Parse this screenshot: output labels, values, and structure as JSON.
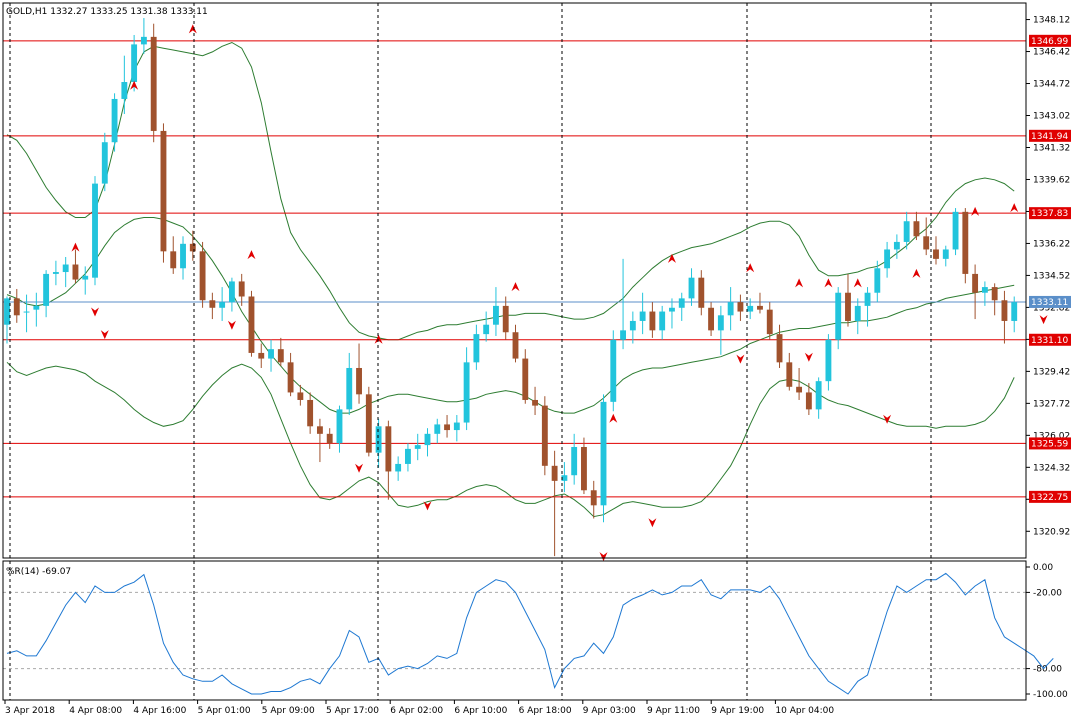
{
  "header": {
    "symbol": "GOLD,H1",
    "open": "1332.27",
    "high": "1333.25",
    "low": "1331.38",
    "close": "1333.11"
  },
  "oscillator": {
    "label": "%R(14) -69.07"
  },
  "colors": {
    "bull": "#22c4dc",
    "bear": "#a0522d",
    "band": "#2e7d32",
    "hline": "#e00000",
    "price_line": "#5b8fc9",
    "wr_line": "#1e78d2",
    "arrow": "#e00000"
  },
  "chart_data": [
    {
      "type": "candlestick",
      "ylim": [
        1319.5,
        1349.0
      ],
      "y_ticks": [
        "1348.12",
        "1346.42",
        "1344.72",
        "1343.02",
        "1341.32",
        "1339.62",
        "1337.92",
        "1336.22",
        "1334.52",
        "1332.82",
        "1331.12",
        "1329.42",
        "1327.72",
        "1326.02",
        "1324.32",
        "1322.62",
        "1320.92"
      ],
      "x_labels": [
        "3 Apr 2018",
        "4 Apr 08:00",
        "4 Apr 16:00",
        "5 Apr 01:00",
        "5 Apr 09:00",
        "5 Apr 17:00",
        "6 Apr 02:00",
        "6 Apr 10:00",
        "6 Apr 18:00",
        "9 Apr 03:00",
        "9 Apr 11:00",
        "9 Apr 19:00",
        "10 Apr 04:00"
      ],
      "horizontal_levels": [
        "1346.99",
        "1341.94",
        "1337.83",
        "1331.10",
        "1325.59",
        "1322.75"
      ],
      "current_price": "1333.11",
      "candles_ohlc": [
        [
          1331.9,
          1333.4,
          1330.9,
          1333.3
        ],
        [
          1333.3,
          1333.8,
          1332.0,
          1332.4
        ],
        [
          1332.6,
          1333.5,
          1331.5,
          1332.6
        ],
        [
          1332.7,
          1333.6,
          1331.8,
          1332.9
        ],
        [
          1332.9,
          1334.8,
          1332.3,
          1334.6
        ],
        [
          1334.6,
          1335.3,
          1334.0,
          1334.7
        ],
        [
          1334.7,
          1335.5,
          1333.9,
          1335.1
        ],
        [
          1335.1,
          1335.9,
          1334.1,
          1334.3
        ],
        [
          1334.3,
          1335.0,
          1333.5,
          1334.5
        ],
        [
          1334.4,
          1339.8,
          1334.0,
          1339.4
        ],
        [
          1339.4,
          1342.1,
          1339.0,
          1341.6
        ],
        [
          1341.6,
          1344.2,
          1341.1,
          1343.9
        ],
        [
          1343.9,
          1346.2,
          1343.1,
          1344.8
        ],
        [
          1344.8,
          1347.3,
          1344.3,
          1346.8
        ],
        [
          1346.8,
          1348.2,
          1346.3,
          1347.2
        ],
        [
          1347.2,
          1347.9,
          1341.6,
          1342.2
        ],
        [
          1342.2,
          1342.6,
          1335.2,
          1335.8
        ],
        [
          1335.8,
          1336.6,
          1334.6,
          1334.9
        ],
        [
          1334.9,
          1336.6,
          1334.3,
          1336.2
        ],
        [
          1336.2,
          1336.9,
          1335.3,
          1335.8
        ],
        [
          1335.8,
          1336.3,
          1332.8,
          1333.2
        ],
        [
          1333.2,
          1333.6,
          1332.2,
          1332.8
        ],
        [
          1332.8,
          1333.9,
          1332.1,
          1333.1
        ],
        [
          1333.1,
          1334.4,
          1332.6,
          1334.2
        ],
        [
          1334.2,
          1334.6,
          1332.9,
          1333.4
        ],
        [
          1333.4,
          1333.7,
          1330.2,
          1330.4
        ],
        [
          1330.4,
          1330.9,
          1329.6,
          1330.1
        ],
        [
          1330.1,
          1331.1,
          1329.4,
          1330.6
        ],
        [
          1330.6,
          1331.2,
          1329.7,
          1329.9
        ],
        [
          1329.9,
          1330.4,
          1328.1,
          1328.3
        ],
        [
          1328.3,
          1328.7,
          1327.6,
          1327.9
        ],
        [
          1327.9,
          1328.3,
          1326.1,
          1326.5
        ],
        [
          1326.5,
          1326.9,
          1324.6,
          1326.1
        ],
        [
          1326.1,
          1326.4,
          1325.3,
          1325.6
        ],
        [
          1325.6,
          1327.6,
          1325.1,
          1327.4
        ],
        [
          1327.4,
          1330.4,
          1327.1,
          1329.6
        ],
        [
          1329.6,
          1330.9,
          1327.7,
          1328.2
        ],
        [
          1328.2,
          1328.6,
          1324.9,
          1325.1
        ],
        [
          1325.1,
          1326.9,
          1324.3,
          1326.5
        ],
        [
          1326.5,
          1326.8,
          1322.6,
          1324.1
        ],
        [
          1324.1,
          1324.9,
          1323.6,
          1324.5
        ],
        [
          1324.5,
          1325.6,
          1324.1,
          1325.3
        ],
        [
          1325.3,
          1326.1,
          1324.7,
          1325.5
        ],
        [
          1325.5,
          1326.4,
          1324.9,
          1326.1
        ],
        [
          1326.1,
          1326.9,
          1325.6,
          1326.6
        ],
        [
          1326.6,
          1327.1,
          1325.9,
          1326.3
        ],
        [
          1326.3,
          1327.1,
          1325.7,
          1326.7
        ],
        [
          1326.7,
          1330.7,
          1326.3,
          1329.9
        ],
        [
          1329.9,
          1331.9,
          1329.5,
          1331.4
        ],
        [
          1331.4,
          1332.6,
          1331.0,
          1331.9
        ],
        [
          1331.9,
          1333.9,
          1331.3,
          1332.9
        ],
        [
          1332.9,
          1333.4,
          1331.1,
          1331.5
        ],
        [
          1331.5,
          1331.9,
          1329.9,
          1330.1
        ],
        [
          1330.1,
          1330.6,
          1327.7,
          1327.9
        ],
        [
          1327.9,
          1328.6,
          1327.1,
          1327.6
        ],
        [
          1327.6,
          1328.1,
          1323.9,
          1324.4
        ],
        [
          1324.4,
          1325.2,
          1319.6,
          1323.6
        ],
        [
          1323.6,
          1324.6,
          1323.0,
          1323.9
        ],
        [
          1323.9,
          1326.1,
          1323.4,
          1325.4
        ],
        [
          1325.4,
          1325.9,
          1322.9,
          1323.1
        ],
        [
          1323.1,
          1323.6,
          1321.6,
          1322.3
        ],
        [
          1322.3,
          1328.2,
          1321.4,
          1327.8
        ],
        [
          1327.8,
          1331.6,
          1327.3,
          1331.1
        ],
        [
          1331.1,
          1335.4,
          1330.6,
          1331.6
        ],
        [
          1331.6,
          1332.6,
          1330.9,
          1332.1
        ],
        [
          1332.1,
          1333.6,
          1331.4,
          1332.6
        ],
        [
          1332.6,
          1333.1,
          1331.2,
          1331.6
        ],
        [
          1331.6,
          1332.9,
          1331.1,
          1332.6
        ],
        [
          1332.6,
          1333.3,
          1331.7,
          1332.8
        ],
        [
          1332.8,
          1333.6,
          1332.1,
          1333.3
        ],
        [
          1333.3,
          1334.9,
          1332.9,
          1334.4
        ],
        [
          1334.4,
          1334.8,
          1332.4,
          1332.8
        ],
        [
          1332.8,
          1333.1,
          1331.3,
          1331.6
        ],
        [
          1331.6,
          1332.9,
          1330.3,
          1332.4
        ],
        [
          1332.4,
          1333.9,
          1331.6,
          1333.1
        ],
        [
          1333.1,
          1333.5,
          1332.1,
          1332.6
        ],
        [
          1332.6,
          1333.3,
          1332.2,
          1332.9
        ],
        [
          1332.9,
          1333.6,
          1332.5,
          1332.7
        ],
        [
          1332.7,
          1333.1,
          1331.1,
          1331.4
        ],
        [
          1331.4,
          1331.9,
          1329.6,
          1329.9
        ],
        [
          1329.9,
          1330.4,
          1328.4,
          1328.6
        ],
        [
          1328.6,
          1329.6,
          1327.9,
          1328.3
        ],
        [
          1328.3,
          1328.8,
          1327.1,
          1327.4
        ],
        [
          1327.4,
          1329.1,
          1326.9,
          1328.9
        ],
        [
          1328.9,
          1331.4,
          1328.4,
          1331.1
        ],
        [
          1331.1,
          1333.9,
          1330.6,
          1333.6
        ],
        [
          1333.6,
          1334.6,
          1331.8,
          1332.1
        ],
        [
          1332.1,
          1333.3,
          1331.4,
          1332.9
        ],
        [
          1332.9,
          1333.9,
          1331.8,
          1333.6
        ],
        [
          1333.6,
          1335.3,
          1333.1,
          1334.9
        ],
        [
          1334.9,
          1336.3,
          1334.4,
          1335.9
        ],
        [
          1335.9,
          1336.7,
          1335.4,
          1336.3
        ],
        [
          1336.3,
          1337.9,
          1335.9,
          1337.4
        ],
        [
          1337.4,
          1337.9,
          1336.4,
          1336.6
        ],
        [
          1336.6,
          1337.6,
          1335.6,
          1335.9
        ],
        [
          1335.9,
          1336.6,
          1335.1,
          1335.4
        ],
        [
          1335.4,
          1336.1,
          1335.0,
          1335.9
        ],
        [
          1335.9,
          1338.1,
          1335.6,
          1337.9
        ],
        [
          1337.9,
          1338.1,
          1334.1,
          1334.6
        ],
        [
          1334.6,
          1335.1,
          1332.2,
          1333.6
        ],
        [
          1333.6,
          1334.2,
          1332.9,
          1333.9
        ],
        [
          1333.9,
          1334.1,
          1332.4,
          1333.2
        ],
        [
          1333.2,
          1333.7,
          1330.9,
          1332.1
        ],
        [
          1332.1,
          1333.4,
          1331.5,
          1333.1
        ]
      ],
      "bollinger_middle": [
        1333.5,
        1333.3,
        1333.0,
        1332.9,
        1333.0,
        1333.3,
        1333.6,
        1334.1,
        1334.6,
        1335.3,
        1336.1,
        1336.8,
        1337.2,
        1337.5,
        1337.6,
        1337.6,
        1337.5,
        1337.3,
        1337.1,
        1336.6,
        1336.0,
        1335.3,
        1334.5,
        1333.6,
        1332.6,
        1331.8,
        1331.0,
        1330.3,
        1329.7,
        1329.1,
        1328.6,
        1328.2,
        1327.8,
        1327.4,
        1327.2,
        1327.2,
        1327.4,
        1327.7,
        1327.9,
        1328.1,
        1328.2,
        1328.2,
        1328.1,
        1328.0,
        1327.9,
        1327.8,
        1327.8,
        1327.9,
        1328.0,
        1328.2,
        1328.3,
        1328.4,
        1328.3,
        1328.1,
        1327.8,
        1327.5,
        1327.3,
        1327.2,
        1327.2,
        1327.4,
        1327.6,
        1328.0,
        1328.5,
        1329.0,
        1329.3,
        1329.5,
        1329.6,
        1329.6,
        1329.7,
        1329.8,
        1329.9,
        1330.0,
        1330.1,
        1330.2,
        1330.4,
        1330.6,
        1330.9,
        1331.1,
        1331.3,
        1331.5,
        1331.6,
        1331.7,
        1331.7,
        1331.8,
        1331.9,
        1332.0,
        1332.0,
        1332.1,
        1332.1,
        1332.2,
        1332.3,
        1332.5,
        1332.7,
        1332.8,
        1333.0,
        1333.1,
        1333.3,
        1333.4,
        1333.5,
        1333.6,
        1333.7,
        1333.8,
        1333.9,
        1334.0
      ],
      "bollinger_upper": [
        1342.0,
        1341.7,
        1341.0,
        1340.1,
        1339.2,
        1338.5,
        1337.9,
        1337.6,
        1337.6,
        1338.0,
        1339.4,
        1341.5,
        1343.7,
        1345.4,
        1346.4,
        1346.7,
        1346.6,
        1346.5,
        1346.4,
        1346.3,
        1346.2,
        1346.4,
        1346.7,
        1346.9,
        1346.6,
        1345.6,
        1343.7,
        1341.1,
        1338.6,
        1336.8,
        1335.9,
        1335.2,
        1334.5,
        1333.7,
        1332.8,
        1332.0,
        1331.5,
        1331.3,
        1331.2,
        1331.1,
        1331.1,
        1331.3,
        1331.5,
        1331.6,
        1331.8,
        1331.9,
        1331.9,
        1332.0,
        1332.1,
        1332.2,
        1332.3,
        1332.4,
        1332.4,
        1332.5,
        1332.5,
        1332.5,
        1332.4,
        1332.3,
        1332.2,
        1332.2,
        1332.3,
        1332.5,
        1332.9,
        1333.3,
        1333.9,
        1334.4,
        1334.9,
        1335.3,
        1335.6,
        1335.8,
        1336.0,
        1336.1,
        1336.2,
        1336.4,
        1336.6,
        1336.8,
        1337.1,
        1337.3,
        1337.4,
        1337.4,
        1337.2,
        1336.6,
        1335.6,
        1334.8,
        1334.5,
        1334.5,
        1334.6,
        1334.7,
        1334.9,
        1335.0,
        1335.3,
        1335.7,
        1336.1,
        1336.6,
        1337.0,
        1337.6,
        1338.4,
        1339.0,
        1339.4,
        1339.6,
        1339.7,
        1339.6,
        1339.4,
        1339.0
      ],
      "bollinger_lower": [
        1329.9,
        1329.4,
        1329.2,
        1329.4,
        1329.6,
        1329.7,
        1329.6,
        1329.5,
        1329.3,
        1328.9,
        1328.6,
        1328.3,
        1327.9,
        1327.4,
        1327.0,
        1326.7,
        1326.5,
        1326.6,
        1326.8,
        1327.4,
        1328.1,
        1328.7,
        1329.2,
        1329.6,
        1329.8,
        1329.6,
        1329.1,
        1328.2,
        1326.9,
        1325.6,
        1324.4,
        1323.4,
        1322.7,
        1322.6,
        1322.8,
        1323.2,
        1323.6,
        1323.8,
        1323.5,
        1322.9,
        1322.3,
        1322.2,
        1322.3,
        1322.5,
        1322.6,
        1322.6,
        1322.8,
        1323.1,
        1323.3,
        1323.4,
        1323.3,
        1323.0,
        1322.6,
        1322.4,
        1322.4,
        1322.6,
        1322.8,
        1322.9,
        1322.6,
        1322.2,
        1321.7,
        1321.8,
        1322.1,
        1322.4,
        1322.5,
        1322.4,
        1322.3,
        1322.2,
        1322.2,
        1322.2,
        1322.3,
        1322.5,
        1323.0,
        1323.7,
        1324.4,
        1325.4,
        1326.6,
        1327.7,
        1328.5,
        1328.9,
        1329.0,
        1328.9,
        1328.6,
        1328.2,
        1327.9,
        1327.7,
        1327.6,
        1327.4,
        1327.2,
        1327.0,
        1326.8,
        1326.6,
        1326.5,
        1326.5,
        1326.5,
        1326.4,
        1326.5,
        1326.5,
        1326.5,
        1326.6,
        1326.8,
        1327.3,
        1328.0,
        1329.1
      ],
      "fractals_up": [
        [
          7,
          1336.0
        ],
        [
          13,
          1344.6
        ],
        [
          19,
          1347.6
        ],
        [
          25,
          1335.6
        ],
        [
          38,
          1331.1
        ],
        [
          52,
          1333.9
        ],
        [
          62,
          1326.9
        ],
        [
          68,
          1335.4
        ],
        [
          76,
          1334.9
        ],
        [
          81,
          1334.1
        ],
        [
          84,
          1334.1
        ],
        [
          87,
          1334.1
        ],
        [
          93,
          1334.6
        ],
        [
          99,
          1337.9
        ],
        [
          103,
          1338.1
        ]
      ],
      "fractals_down": [
        [
          9,
          1332.6
        ],
        [
          10,
          1331.4
        ],
        [
          23,
          1331.9
        ],
        [
          36,
          1324.3
        ],
        [
          43,
          1322.3
        ],
        [
          61,
          1319.6
        ],
        [
          66,
          1321.4
        ],
        [
          75,
          1330.1
        ],
        [
          82,
          1330.2
        ],
        [
          90,
          1326.9
        ],
        [
          106,
          1332.2
        ]
      ]
    },
    {
      "type": "line",
      "name": "%R(14)",
      "ylim": [
        -100,
        0
      ],
      "y_ticks": [
        "0.00",
        "-20.00",
        "-80.00",
        "-100.00"
      ],
      "levels": [
        -20,
        -80
      ],
      "values": [
        -68,
        -66,
        -70,
        -70,
        -58,
        -44,
        -30,
        -20,
        -28,
        -15,
        -20,
        -20,
        -15,
        -12,
        -6,
        -30,
        -60,
        -75,
        -85,
        -88,
        -90,
        -90,
        -85,
        -92,
        -96,
        -100,
        -100,
        -98,
        -98,
        -95,
        -90,
        -88,
        -92,
        -80,
        -70,
        -50,
        -55,
        -75,
        -72,
        -85,
        -80,
        -78,
        -80,
        -76,
        -70,
        -72,
        -68,
        -40,
        -20,
        -15,
        -10,
        -12,
        -20,
        -35,
        -50,
        -65,
        -95,
        -80,
        -72,
        -70,
        -60,
        -68,
        -55,
        -30,
        -25,
        -22,
        -18,
        -22,
        -20,
        -15,
        -15,
        -10,
        -22,
        -25,
        -18,
        -18,
        -18,
        -20,
        -15,
        -25,
        -40,
        -55,
        -70,
        -80,
        -90,
        -95,
        -100,
        -90,
        -85,
        -60,
        -35,
        -15,
        -20,
        -15,
        -10,
        -10,
        -5,
        -12,
        -22,
        -15,
        -10,
        -40,
        -55,
        -60,
        -65,
        -70,
        -80,
        -72
      ]
    }
  ]
}
